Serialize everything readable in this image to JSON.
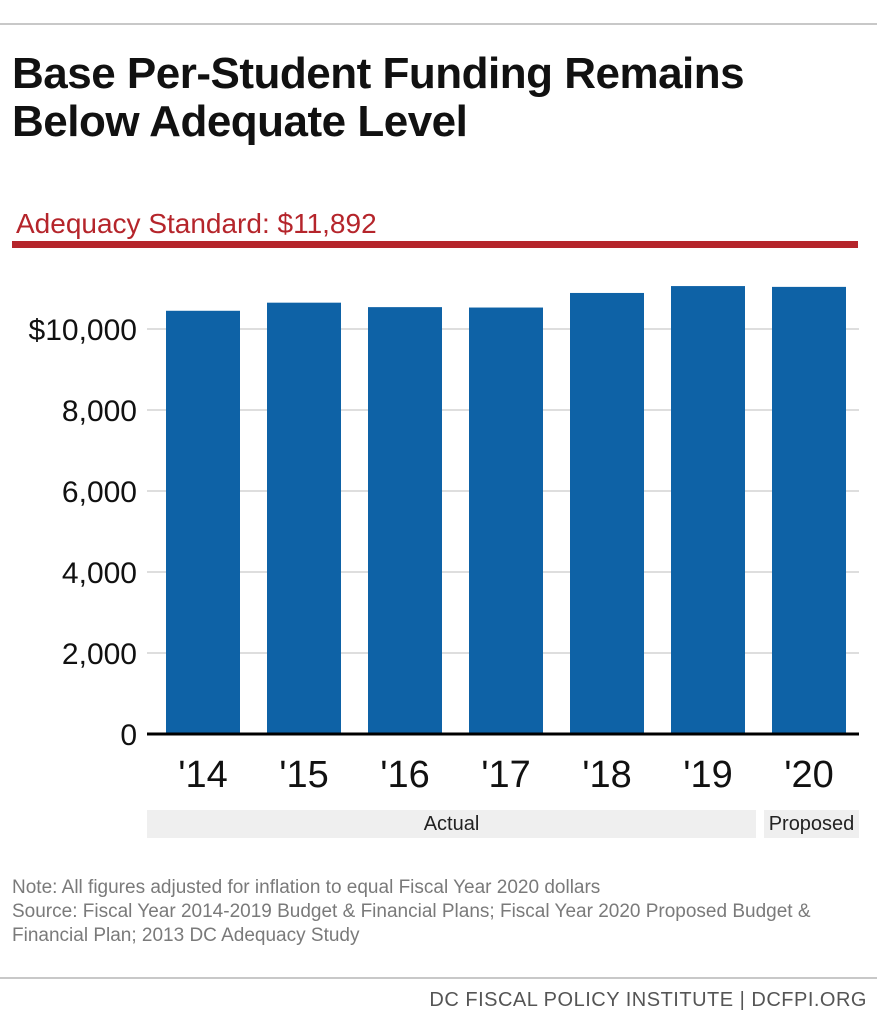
{
  "title": "Base Per-Student Funding Remains Below Adequate Level",
  "adequacy_label": "Adequacy Standard: $11,892",
  "groups": {
    "actual": "Actual",
    "proposed": "Proposed"
  },
  "note": {
    "line1": "Note: All figures adjusted for inflation to equal Fiscal Year 2020 dollars",
    "line2": "Source: Fiscal Year 2014-2019 Budget & Financial Plans; Fiscal Year 2020 Proposed Budget & Financial Plan; 2013 DC Adequacy Study"
  },
  "footer": "DC FISCAL POLICY INSTITUTE | DCFPI.ORG",
  "colors": {
    "bar": "#0e62a6",
    "adequacy": "#b5252b",
    "grid": "#bdbdbd",
    "axis": "#000000"
  },
  "chart_data": {
    "type": "bar",
    "categories": [
      "'14",
      "'15",
      "'16",
      "'17",
      "'18",
      "'19",
      "'20"
    ],
    "values": [
      10450,
      10650,
      10540,
      10530,
      10890,
      11060,
      11040
    ],
    "title": "Base Per-Student Funding Remains Below Adequate Level",
    "xlabel": "",
    "ylabel": "",
    "ylim": [
      0,
      11892
    ],
    "yticks": [
      0,
      2000,
      4000,
      6000,
      8000,
      10000
    ],
    "ytick_labels": [
      "0",
      "2,000",
      "4,000",
      "6,000",
      "8,000",
      "$10,000"
    ],
    "reference_line": {
      "label": "Adequacy Standard: $11,892",
      "value": 11892
    },
    "grid": true,
    "legend": "none"
  }
}
